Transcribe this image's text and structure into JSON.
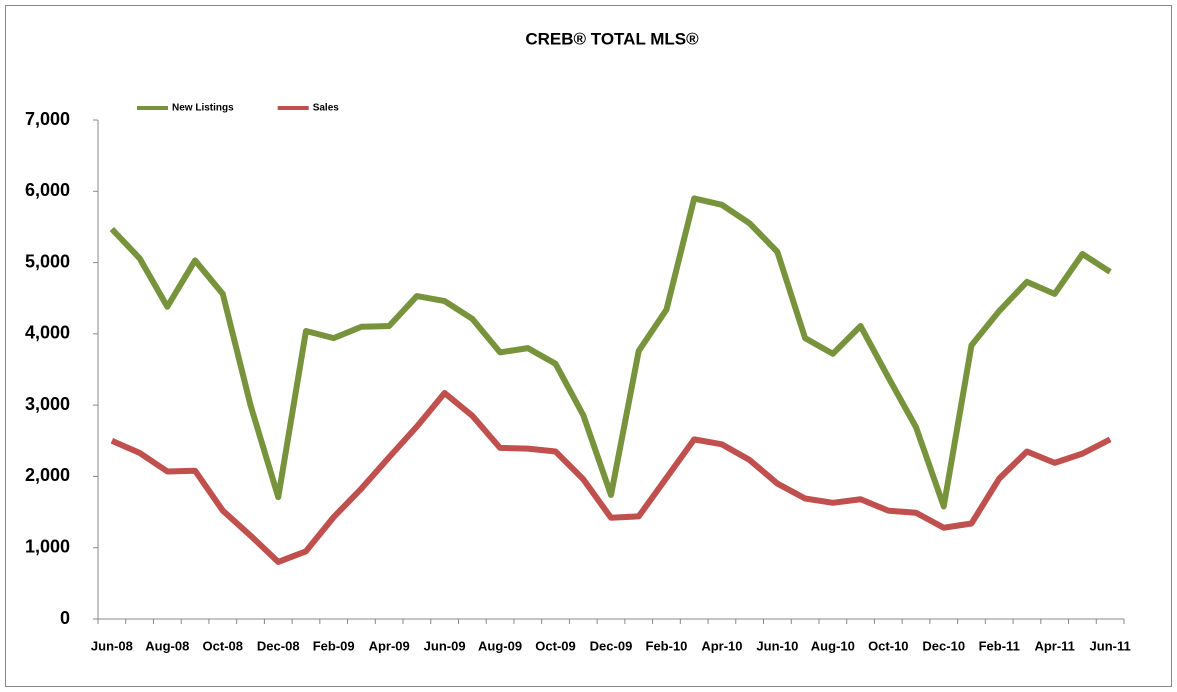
{
  "chart_data": {
    "type": "line",
    "title": "CREB® TOTAL MLS®",
    "categories": [
      "Jun-08",
      null,
      "Aug-08",
      null,
      "Oct-08",
      null,
      "Dec-08",
      null,
      "Feb-09",
      null,
      "Apr-09",
      null,
      "Jun-09",
      null,
      "Aug-09",
      null,
      "Oct-09",
      null,
      "Dec-09",
      null,
      "Feb-10",
      null,
      "Apr-10",
      null,
      "Jun-10",
      null,
      "Aug-10",
      null,
      "Oct-10",
      null,
      "Dec-10",
      null,
      "Feb-11",
      null,
      "Apr-11",
      null,
      "Jun-11"
    ],
    "series": [
      {
        "name": "New Listings",
        "color": "#77933c",
        "values": [
          5470,
          5060,
          4380,
          5030,
          4560,
          3000,
          1710,
          4040,
          3940,
          4100,
          4110,
          4530,
          4460,
          4210,
          3740,
          3800,
          3580,
          2860,
          1740,
          3760,
          4340,
          5900,
          5810,
          5550,
          5150,
          3940,
          3720,
          4110,
          3390,
          2690,
          1580,
          3840,
          4320,
          4730,
          4560,
          5120,
          4870
        ]
      },
      {
        "name": "Sales",
        "color": "#c0504d",
        "values": [
          2500,
          2330,
          2070,
          2080,
          1520,
          1170,
          800,
          950,
          1430,
          1830,
          2270,
          2700,
          3170,
          2850,
          2400,
          2390,
          2350,
          1960,
          1420,
          1440,
          1980,
          2520,
          2450,
          2230,
          1900,
          1690,
          1630,
          1680,
          1520,
          1490,
          1280,
          1340,
          1970,
          2350,
          2190,
          2320,
          2520
        ]
      }
    ],
    "ylim": [
      0,
      7000
    ],
    "yticks": [
      0,
      {
        "value": 1000,
        "label": "1,000"
      },
      {
        "value": 2000,
        "label": "2,000"
      },
      {
        "value": 3000,
        "label": "3,000"
      },
      {
        "value": 4000,
        "label": "4,000"
      },
      {
        "value": 5000,
        "label": "5,000"
      },
      {
        "value": 6000,
        "label": "6,000"
      },
      {
        "value": 7000,
        "label": "7,000"
      }
    ],
    "grid": false,
    "legend": "top-left"
  }
}
